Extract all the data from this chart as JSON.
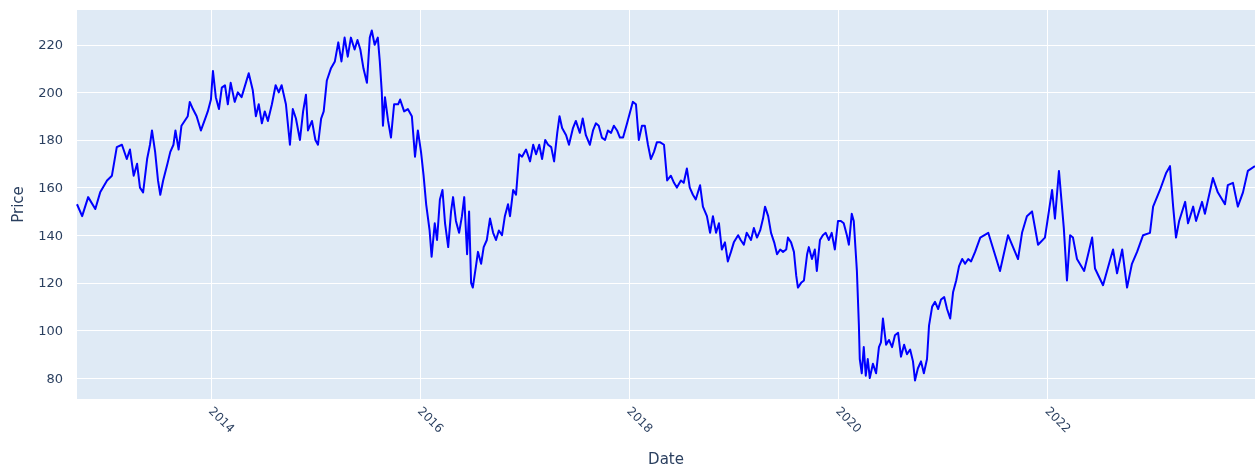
{
  "chart_data": {
    "type": "line",
    "xlabel": "Date",
    "ylabel": "Price",
    "xlim": [
      "2012-09-20",
      "2023-12-28"
    ],
    "xticks": [
      "2014",
      "2016",
      "2018",
      "2020",
      "2022"
    ],
    "ylim": [
      71.2,
      234.6
    ],
    "yticks": [
      80,
      100,
      120,
      140,
      160,
      180,
      200,
      220
    ],
    "grid": true,
    "x": [
      "2012-09-20",
      "2012-10-08",
      "2012-10-29",
      "2012-11-23",
      "2012-12-10",
      "2013-01-03",
      "2013-01-20",
      "2013-02-06",
      "2013-02-24",
      "2013-03-13",
      "2013-03-24",
      "2013-04-06",
      "2013-04-18",
      "2013-04-28",
      "2013-05-09",
      "2013-05-23",
      "2013-06-02",
      "2013-06-09",
      "2013-06-20",
      "2013-06-30",
      "2013-07-08",
      "2013-07-18",
      "2013-08-02",
      "2013-08-12",
      "2013-08-23",
      "2013-08-30",
      "2013-09-10",
      "2013-09-20",
      "2013-10-01",
      "2013-10-12",
      "2013-10-19",
      "2013-10-30",
      "2013-11-12",
      "2013-11-27",
      "2013-12-12",
      "2013-12-21",
      "2014-01-01",
      "2014-01-08",
      "2014-01-18",
      "2014-01-29",
      "2014-02-08",
      "2014-02-19",
      "2014-03-01",
      "2014-03-11",
      "2014-03-25",
      "2014-04-05",
      "2014-04-18",
      "2014-05-03",
      "2014-05-13",
      "2014-05-27",
      "2014-06-07",
      "2014-06-17",
      "2014-06-28",
      "2014-07-08",
      "2014-07-19",
      "2014-08-02",
      "2014-08-15",
      "2014-08-26",
      "2014-09-05",
      "2014-09-20",
      "2014-10-04",
      "2014-10-14",
      "2014-10-25",
      "2014-11-08",
      "2014-11-19",
      "2014-11-29",
      "2014-12-06",
      "2014-12-20",
      "2015-01-01",
      "2015-01-10",
      "2015-01-21",
      "2015-01-30",
      "2015-02-10",
      "2015-02-24",
      "2015-03-10",
      "2015-03-22",
      "2015-04-02",
      "2015-04-13",
      "2015-04-24",
      "2015-05-05",
      "2015-05-18",
      "2015-05-28",
      "2015-06-07",
      "2015-06-18",
      "2015-06-30",
      "2015-07-10",
      "2015-07-17",
      "2015-07-27",
      "2015-08-07",
      "2015-08-14",
      "2015-08-21",
      "2015-08-25",
      "2015-09-01",
      "2015-09-12",
      "2015-09-22",
      "2015-10-03",
      "2015-10-17",
      "2015-10-24",
      "2015-11-07",
      "2015-11-20",
      "2015-12-04",
      "2015-12-15",
      "2015-12-25",
      "2016-01-05",
      "2016-01-14",
      "2016-01-23",
      "2016-02-04",
      "2016-02-11",
      "2016-02-22",
      "2016-03-01",
      "2016-03-11",
      "2016-03-20",
      "2016-03-29",
      "2016-04-09",
      "2016-04-19",
      "2016-04-26",
      "2016-05-06",
      "2016-05-17",
      "2016-05-27",
      "2016-06-04",
      "2016-06-14",
      "2016-06-21",
      "2016-06-28",
      "2016-07-04",
      "2016-07-15",
      "2016-07-22",
      "2016-08-02",
      "2016-08-11",
      "2016-08-22",
      "2016-09-02",
      "2016-09-13",
      "2016-09-23",
      "2016-10-03",
      "2016-10-14",
      "2016-10-24",
      "2016-11-04",
      "2016-11-11",
      "2016-11-22",
      "2016-12-02",
      "2016-12-13",
      "2016-12-23",
      "2017-01-06",
      "2017-01-20",
      "2017-01-31",
      "2017-02-10",
      "2017-02-21",
      "2017-03-03",
      "2017-03-14",
      "2017-03-24",
      "2017-04-04",
      "2017-04-14",
      "2017-04-25",
      "2017-05-03",
      "2017-05-12",
      "2017-05-26",
      "2017-06-05",
      "2017-06-19",
      "2017-06-29",
      "2017-07-13",
      "2017-07-23",
      "2017-08-03",
      "2017-08-17",
      "2017-08-28",
      "2017-09-07",
      "2017-09-17",
      "2017-09-28",
      "2017-10-09",
      "2017-10-19",
      "2017-10-30",
      "2017-11-09",
      "2017-11-20",
      "2017-11-30",
      "2017-12-11",
      "2017-12-25",
      "2018-01-05",
      "2018-01-14",
      "2018-01-25",
      "2018-02-04",
      "2018-02-15",
      "2018-02-25",
      "2018-03-08",
      "2018-03-18",
      "2018-03-29",
      "2018-04-08",
      "2018-04-20",
      "2018-05-03",
      "2018-05-14",
      "2018-05-27",
      "2018-06-07",
      "2018-06-17",
      "2018-07-01",
      "2018-07-11",
      "2018-07-22",
      "2018-08-01",
      "2018-08-12",
      "2018-08-22",
      "2018-09-06",
      "2018-09-16",
      "2018-09-30",
      "2018-10-11",
      "2018-10-21",
      "2018-11-01",
      "2018-11-11",
      "2018-11-21",
      "2018-12-02",
      "2018-12-12",
      "2018-12-23",
      "2019-01-02",
      "2019-01-17",
      "2019-01-26",
      "2019-02-06",
      "2019-02-16",
      "2019-03-03",
      "2019-03-13",
      "2019-03-24",
      "2019-04-04",
      "2019-04-14",
      "2019-04-21",
      "2019-05-02",
      "2019-05-12",
      "2019-05-23",
      "2019-06-02",
      "2019-06-13",
      "2019-06-23",
      "2019-07-04",
      "2019-07-10",
      "2019-07-21",
      "2019-07-31",
      "2019-08-08",
      "2019-08-14",
      "2019-08-25",
      "2019-09-04",
      "2019-09-15",
      "2019-09-21",
      "2019-10-02",
      "2019-10-12",
      "2019-10-19",
      "2019-10-30",
      "2019-11-09",
      "2019-11-19",
      "2019-11-30",
      "2019-12-10",
      "2019-12-21",
      "2020-01-01",
      "2020-01-11",
      "2020-01-21",
      "2020-02-01",
      "2020-02-08",
      "2020-02-18",
      "2020-02-25",
      "2020-03-07",
      "2020-03-14",
      "2020-03-17",
      "2020-03-24",
      "2020-03-31",
      "2020-04-07",
      "2020-04-14",
      "2020-04-21",
      "2020-05-02",
      "2020-05-13",
      "2020-05-23",
      "2020-05-30",
      "2020-06-06",
      "2020-06-17",
      "2020-06-27",
      "2020-07-08",
      "2020-07-18",
      "2020-07-29",
      "2020-08-08",
      "2020-08-19",
      "2020-08-29",
      "2020-09-09",
      "2020-09-19",
      "2020-09-26",
      "2020-10-06",
      "2020-10-17",
      "2020-10-27",
      "2020-11-07",
      "2020-11-14",
      "2020-11-25",
      "2020-12-05",
      "2020-12-16",
      "2020-12-26",
      "2021-01-06",
      "2021-01-16",
      "2021-01-27",
      "2021-02-06",
      "2021-02-17",
      "2021-02-27",
      "2021-03-10",
      "2021-03-20",
      "2021-03-31",
      "2021-04-10",
      "2021-04-24",
      "2021-05-12",
      "2021-06-09",
      "2021-07-20",
      "2021-08-17",
      "2021-09-21",
      "2021-10-05",
      "2021-10-22",
      "2021-11-09",
      "2021-11-30",
      "2021-12-24",
      "2022-01-18",
      "2022-01-28",
      "2022-02-11",
      "2022-02-28",
      "2022-03-11",
      "2022-03-22",
      "2022-04-01",
      "2022-04-15",
      "2022-05-10",
      "2022-06-07",
      "2022-06-17",
      "2022-07-15",
      "2022-08-19",
      "2022-09-02",
      "2022-09-20",
      "2022-10-07",
      "2022-10-24",
      "2022-11-11",
      "2022-12-02",
      "2022-12-26",
      "2023-01-06",
      "2023-01-30",
      "2023-02-20",
      "2023-03-06",
      "2023-03-17",
      "2023-03-27",
      "2023-04-07",
      "2023-04-28",
      "2023-05-08",
      "2023-05-26",
      "2023-06-05",
      "2023-06-26",
      "2023-07-06",
      "2023-08-03",
      "2023-08-20",
      "2023-09-14",
      "2023-09-24",
      "2023-10-12",
      "2023-10-29",
      "2023-11-16",
      "2023-12-03",
      "2023-12-28"
    ],
    "series": [
      {
        "color": "#0000ff",
        "values": [
          153,
          148,
          156,
          151,
          158,
          163,
          165,
          177,
          178,
          172,
          176,
          165,
          170,
          160,
          158,
          172,
          178,
          184,
          175,
          163,
          157,
          163,
          170,
          175,
          178,
          184,
          176,
          186,
          188,
          190,
          196,
          193,
          190,
          184,
          189,
          192,
          197,
          209,
          198,
          193,
          202,
          203,
          195,
          204,
          196,
          200,
          198,
          204,
          208,
          201,
          190,
          195,
          187,
          192,
          188,
          195,
          203,
          200,
          203,
          195,
          178,
          193,
          189,
          180,
          192,
          199,
          184,
          188,
          180,
          178,
          189,
          192,
          205,
          210,
          213,
          221,
          213,
          223,
          215,
          223,
          218,
          222,
          218,
          210,
          204,
          223,
          226,
          220,
          223,
          213,
          200,
          186,
          198,
          188,
          181,
          195,
          195,
          197,
          192,
          193,
          190,
          173,
          184,
          175,
          165,
          153,
          142,
          131,
          145,
          138,
          155,
          159,
          145,
          135,
          150,
          156,
          146,
          141,
          148,
          156,
          132,
          150,
          120,
          118,
          127,
          133,
          128,
          135,
          138,
          147,
          141,
          138,
          142,
          140,
          148,
          153,
          148,
          159,
          157,
          174,
          173,
          176,
          171,
          178,
          174,
          178,
          172,
          180,
          178,
          177,
          171,
          183,
          190,
          185,
          182,
          178,
          185,
          188,
          183,
          189,
          182,
          178,
          184,
          187,
          186,
          181,
          180,
          184,
          183,
          186,
          184,
          181,
          181,
          187,
          192,
          196,
          195,
          180,
          186,
          186,
          178,
          172,
          175,
          179,
          179,
          178,
          163,
          165,
          162,
          160,
          163,
          162,
          168,
          160,
          157,
          155,
          161,
          152,
          148,
          141,
          148,
          141,
          145,
          134,
          137,
          129,
          133,
          137,
          140,
          138,
          136,
          141,
          138,
          143,
          139,
          142,
          147,
          152,
          148,
          141,
          137,
          132,
          134,
          133,
          134,
          139,
          137,
          133,
          123,
          118,
          120,
          121,
          132,
          135,
          130,
          134,
          125,
          138,
          140,
          141,
          138,
          141,
          134,
          146,
          146,
          145,
          140,
          136,
          149,
          146,
          125,
          102,
          88,
          82,
          93,
          81,
          88,
          80,
          86,
          82,
          93,
          95,
          105,
          94,
          96,
          93,
          98,
          99,
          89,
          94,
          90,
          92,
          87,
          79,
          84,
          87,
          82,
          88,
          102,
          110,
          112,
          109,
          113,
          114,
          109,
          105,
          116,
          121,
          127,
          130,
          128,
          130,
          129,
          133,
          139,
          141,
          125,
          140,
          130,
          141,
          148,
          150,
          136,
          139,
          159,
          147,
          167,
          143,
          121,
          140,
          139,
          130,
          125,
          139,
          126,
          119,
          134,
          124,
          134,
          118,
          128,
          133,
          140,
          141,
          152,
          159,
          166,
          169,
          152,
          139,
          146,
          154,
          145,
          152,
          146,
          154,
          149,
          164,
          158,
          153,
          161,
          162,
          152,
          158,
          167,
          169
        ]
      }
    ]
  }
}
